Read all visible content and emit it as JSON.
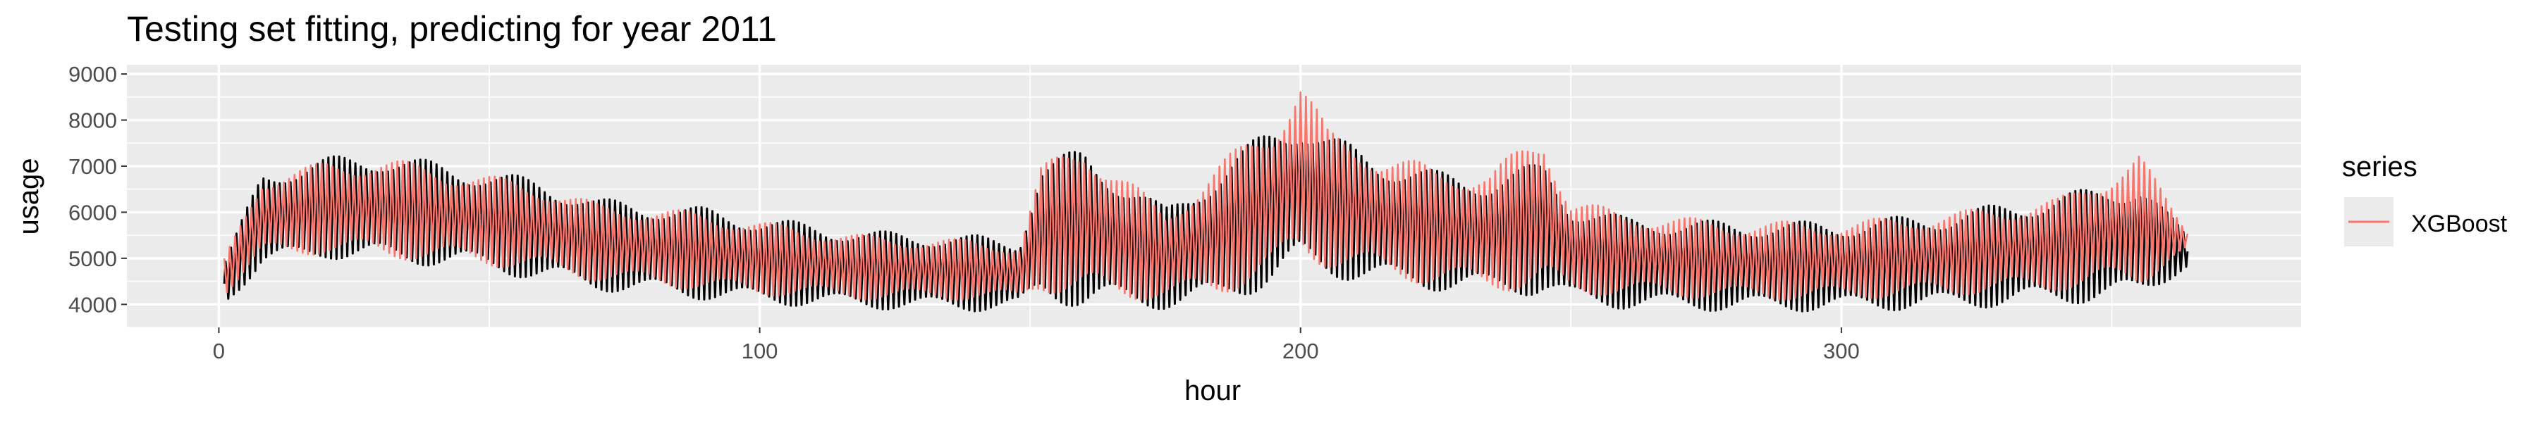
{
  "chart_data": {
    "type": "line",
    "title": "Testing set fitting, predicting for year 2011",
    "xlabel": "hour",
    "ylabel": "usage",
    "xlim": [
      -17,
      385
    ],
    "ylim": [
      3500,
      9200
    ],
    "xticks": [
      0,
      100,
      200,
      300
    ],
    "yticks": [
      4000,
      5000,
      6000,
      7000,
      8000,
      9000
    ],
    "grid": true,
    "legend": {
      "title": "series",
      "position": "right"
    },
    "series": [
      {
        "name": "",
        "color": "#000000",
        "shown_in_legend": false,
        "x_range": [
          1,
          364
        ],
        "level_knots": {
          "x": [
            1,
            8,
            20,
            30,
            45,
            60,
            70,
            80,
            90,
            100,
            120,
            140,
            148,
            152,
            160,
            175,
            185,
            195,
            200,
            205,
            215,
            225,
            235,
            245,
            250,
            260,
            280,
            300,
            320,
            340,
            355,
            364
          ],
          "low": [
            4000,
            4800,
            5000,
            4900,
            4800,
            4500,
            4300,
            4200,
            4100,
            4000,
            3900,
            3850,
            3900,
            4100,
            3900,
            3900,
            4000,
            4400,
            4800,
            4600,
            4400,
            4300,
            4200,
            4200,
            4000,
            3900,
            3850,
            3850,
            3900,
            4000,
            4100,
            4800
          ],
          "high": [
            4900,
            6900,
            7200,
            7300,
            7000,
            6700,
            6300,
            6200,
            6100,
            5900,
            5600,
            5500,
            5400,
            7100,
            7400,
            6100,
            7000,
            7900,
            8100,
            7700,
            7200,
            6900,
            6800,
            7100,
            6200,
            5900,
            5800,
            5800,
            6000,
            6400,
            6700,
            5500
          ]
        }
      },
      {
        "name": "XGBoost",
        "color": "#F8766D",
        "shown_in_legend": true,
        "x_range": [
          1,
          364
        ],
        "level_knots": {
          "x": [
            1,
            8,
            20,
            30,
            45,
            60,
            70,
            80,
            90,
            100,
            120,
            140,
            148,
            152,
            160,
            175,
            185,
            195,
            200,
            205,
            215,
            225,
            235,
            245,
            250,
            260,
            280,
            300,
            320,
            340,
            355,
            364
          ],
          "low": [
            4200,
            5000,
            5100,
            5000,
            4900,
            4700,
            4500,
            4400,
            4300,
            4200,
            4100,
            4100,
            4100,
            4300,
            4100,
            4100,
            4200,
            4600,
            5000,
            4800,
            4600,
            4400,
            4300,
            4300,
            4200,
            4200,
            4100,
            4100,
            4200,
            4300,
            4400,
            5200
          ],
          "high": [
            5000,
            6800,
            7100,
            7200,
            6900,
            6600,
            6200,
            6100,
            6000,
            5800,
            5500,
            5400,
            5300,
            7000,
            7600,
            6000,
            7100,
            8000,
            9000,
            7800,
            7300,
            7000,
            6900,
            7800,
            6300,
            6000,
            5800,
            5800,
            6000,
            6300,
            7300,
            5600
          ]
        }
      }
    ]
  }
}
